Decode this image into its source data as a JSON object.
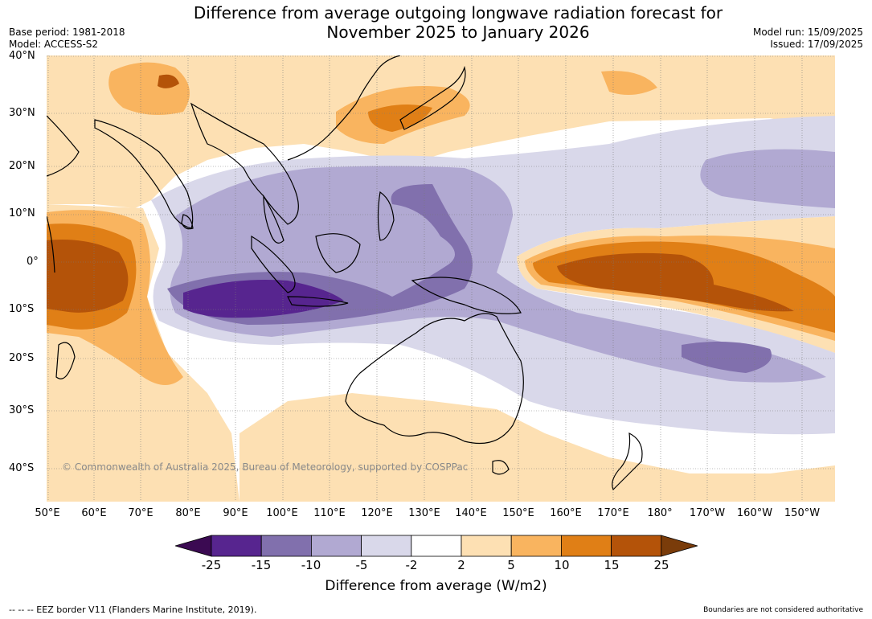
{
  "title_line1": "Difference from average outgoing longwave radiation forecast for",
  "title_line2": "November 2025 to January 2026",
  "base_period": "Base period: 1981-2018",
  "model": "Model: ACCESS-S2",
  "model_run": "Model run: 15/09/2025",
  "issued": "Issued: 17/09/2025",
  "lat_labels": [
    "40°N",
    "30°N",
    "20°N",
    "10°N",
    "0°",
    "10°S",
    "20°S",
    "30°S",
    "40°S"
  ],
  "lon_labels": [
    "50°E",
    "60°E",
    "70°E",
    "80°E",
    "90°E",
    "100°E",
    "110°E",
    "120°E",
    "130°E",
    "140°E",
    "150°E",
    "160°E",
    "170°E",
    "180°",
    "170°W",
    "160°W",
    "150°W"
  ],
  "copyright": "© Commonwealth of Australia 2025, Bureau of Meteorology, supported by COSPPac",
  "colorbar": {
    "labels": [
      "-25",
      "-15",
      "-10",
      "-5",
      "-2",
      "2",
      "5",
      "10",
      "15",
      "25"
    ],
    "colors": [
      "#3b0a52",
      "#57258f",
      "#8170ad",
      "#b1a9d2",
      "#d9d8ea",
      "#ffffff",
      "#fde0b3",
      "#f9b45f",
      "#e07f16",
      "#b45309",
      "#7a3c0a"
    ],
    "title": "Difference from average (W/m2)"
  },
  "footer_left": "-- -- -- EEZ border V11 (Flanders Marine Institute, 2019).",
  "footer_right": "Boundaries are not considered authoritative"
}
